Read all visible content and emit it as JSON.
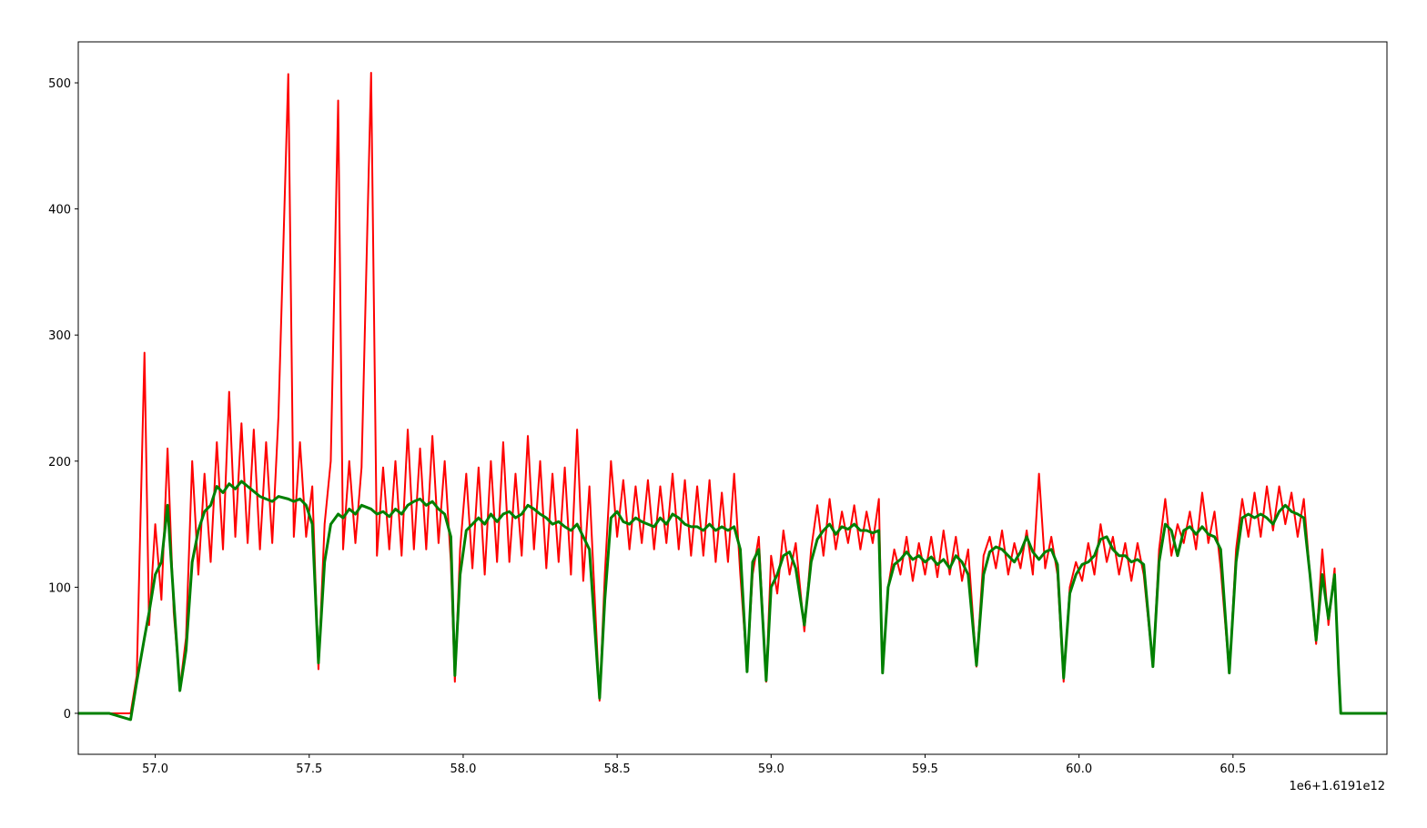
{
  "chart_data": {
    "type": "line",
    "x_offset_label": "1e6+1.6191e12",
    "xlim": [
      56.75,
      61.0
    ],
    "ylim": [
      -32.5,
      532.5
    ],
    "xticks": [
      {
        "value": 57,
        "label": "57.0"
      },
      57.5,
      {
        "value": 58,
        "label": "58.0"
      },
      58.5,
      {
        "value": 59,
        "label": "59.0"
      },
      59.5,
      {
        "value": 60,
        "label": "60.0"
      },
      60.5
    ],
    "yticks": [
      0,
      100,
      200,
      300,
      400,
      500
    ],
    "grid": false,
    "x": [
      56.75,
      56.85,
      56.92,
      56.94,
      56.965,
      56.98,
      57.0,
      57.02,
      57.04,
      57.06,
      57.08,
      57.1,
      57.12,
      57.14,
      57.16,
      57.18,
      57.2,
      57.22,
      57.24,
      57.26,
      57.28,
      57.3,
      57.32,
      57.34,
      57.36,
      57.38,
      57.4,
      57.432,
      57.45,
      57.47,
      57.49,
      57.51,
      57.53,
      57.55,
      57.57,
      57.594,
      57.61,
      57.63,
      57.65,
      57.67,
      57.701,
      57.72,
      57.74,
      57.76,
      57.78,
      57.8,
      57.82,
      57.84,
      57.86,
      57.88,
      57.9,
      57.92,
      57.94,
      57.96,
      57.973,
      57.99,
      58.01,
      58.03,
      58.05,
      58.07,
      58.09,
      58.11,
      58.13,
      58.15,
      58.17,
      58.19,
      58.21,
      58.23,
      58.25,
      58.27,
      58.29,
      58.31,
      58.33,
      58.35,
      58.37,
      58.39,
      58.41,
      58.443,
      58.46,
      58.48,
      58.5,
      58.52,
      58.54,
      58.56,
      58.58,
      58.6,
      58.62,
      58.64,
      58.66,
      58.68,
      58.7,
      58.72,
      58.74,
      58.76,
      58.78,
      58.8,
      58.82,
      58.84,
      58.86,
      58.88,
      58.9,
      58.922,
      58.94,
      58.96,
      58.984,
      59.0,
      59.02,
      59.04,
      59.06,
      59.08,
      59.108,
      59.13,
      59.15,
      59.17,
      59.19,
      59.21,
      59.23,
      59.25,
      59.27,
      59.29,
      59.31,
      59.33,
      59.35,
      59.362,
      59.38,
      59.4,
      59.42,
      59.44,
      59.46,
      59.48,
      59.5,
      59.52,
      59.54,
      59.56,
      59.58,
      59.6,
      59.62,
      59.64,
      59.667,
      59.69,
      59.71,
      59.73,
      59.75,
      59.77,
      59.79,
      59.81,
      59.83,
      59.85,
      59.87,
      59.89,
      59.91,
      59.93,
      59.95,
      59.97,
      59.99,
      60.01,
      60.03,
      60.05,
      60.07,
      60.09,
      60.11,
      60.13,
      60.15,
      60.17,
      60.19,
      60.21,
      60.24,
      60.26,
      60.28,
      60.3,
      60.32,
      60.34,
      60.36,
      60.38,
      60.4,
      60.42,
      60.44,
      60.46,
      60.488,
      60.51,
      60.53,
      60.55,
      60.57,
      60.59,
      60.61,
      60.63,
      60.65,
      60.67,
      60.69,
      60.71,
      60.73,
      60.75,
      60.77,
      60.79,
      60.81,
      60.83,
      60.843,
      60.85,
      61.0
    ],
    "series": [
      {
        "color": "#ff0000",
        "values": [
          0,
          0,
          0,
          30,
          286,
          70,
          150,
          90,
          210,
          80,
          20,
          60,
          200,
          110,
          190,
          120,
          215,
          130,
          255,
          140,
          230,
          135,
          225,
          130,
          215,
          135,
          235,
          507,
          140,
          215,
          140,
          180,
          35,
          150,
          200,
          486,
          130,
          200,
          135,
          195,
          508,
          125,
          195,
          130,
          200,
          125,
          225,
          130,
          210,
          130,
          220,
          135,
          200,
          120,
          25,
          130,
          190,
          115,
          195,
          110,
          200,
          120,
          215,
          120,
          190,
          125,
          220,
          130,
          200,
          115,
          190,
          120,
          195,
          110,
          225,
          105,
          180,
          10,
          110,
          200,
          140,
          185,
          130,
          180,
          135,
          185,
          130,
          180,
          135,
          190,
          130,
          185,
          125,
          180,
          125,
          185,
          120,
          175,
          120,
          190,
          110,
          35,
          110,
          140,
          25,
          125,
          95,
          145,
          110,
          135,
          65,
          130,
          165,
          125,
          170,
          130,
          160,
          135,
          165,
          130,
          160,
          135,
          170,
          32,
          100,
          130,
          110,
          140,
          105,
          135,
          110,
          140,
          108,
          145,
          110,
          140,
          105,
          130,
          37,
          125,
          140,
          115,
          145,
          110,
          135,
          115,
          145,
          110,
          190,
          115,
          140,
          110,
          25,
          100,
          120,
          105,
          135,
          110,
          150,
          120,
          140,
          110,
          135,
          105,
          135,
          110,
          37,
          130,
          170,
          125,
          150,
          135,
          160,
          130,
          175,
          135,
          160,
          115,
          32,
          130,
          170,
          140,
          175,
          140,
          180,
          145,
          180,
          150,
          175,
          140,
          170,
          110,
          55,
          130,
          70,
          115,
          30,
          0,
          0
        ]
      },
      {
        "color": "#008000",
        "values": [
          0,
          0,
          -5,
          25,
          60,
          80,
          110,
          120,
          165,
          90,
          18,
          50,
          120,
          145,
          160,
          165,
          180,
          175,
          182,
          178,
          184,
          180,
          176,
          172,
          170,
          168,
          172,
          170,
          168,
          170,
          165,
          150,
          40,
          120,
          150,
          158,
          155,
          162,
          158,
          165,
          162,
          158,
          160,
          156,
          162,
          158,
          165,
          168,
          170,
          165,
          168,
          162,
          158,
          140,
          30,
          110,
          145,
          150,
          155,
          150,
          158,
          152,
          158,
          160,
          155,
          158,
          165,
          162,
          158,
          155,
          150,
          152,
          148,
          145,
          150,
          140,
          130,
          12,
          90,
          155,
          160,
          152,
          150,
          155,
          152,
          150,
          148,
          155,
          150,
          158,
          155,
          150,
          148,
          148,
          145,
          150,
          145,
          148,
          145,
          148,
          130,
          33,
          120,
          130,
          26,
          100,
          110,
          125,
          128,
          115,
          70,
          120,
          138,
          145,
          150,
          142,
          148,
          146,
          150,
          145,
          145,
          143,
          145,
          32,
          100,
          118,
          122,
          128,
          122,
          125,
          120,
          124,
          118,
          122,
          115,
          125,
          120,
          110,
          38,
          110,
          128,
          132,
          130,
          125,
          120,
          128,
          140,
          128,
          122,
          128,
          130,
          118,
          28,
          95,
          110,
          118,
          120,
          125,
          138,
          140,
          130,
          125,
          125,
          120,
          122,
          118,
          37,
          120,
          150,
          145,
          125,
          145,
          148,
          142,
          148,
          142,
          140,
          130,
          32,
          120,
          155,
          158,
          155,
          158,
          155,
          150,
          160,
          165,
          160,
          158,
          155,
          110,
          58,
          110,
          75,
          110,
          35,
          0,
          0
        ]
      }
    ]
  }
}
